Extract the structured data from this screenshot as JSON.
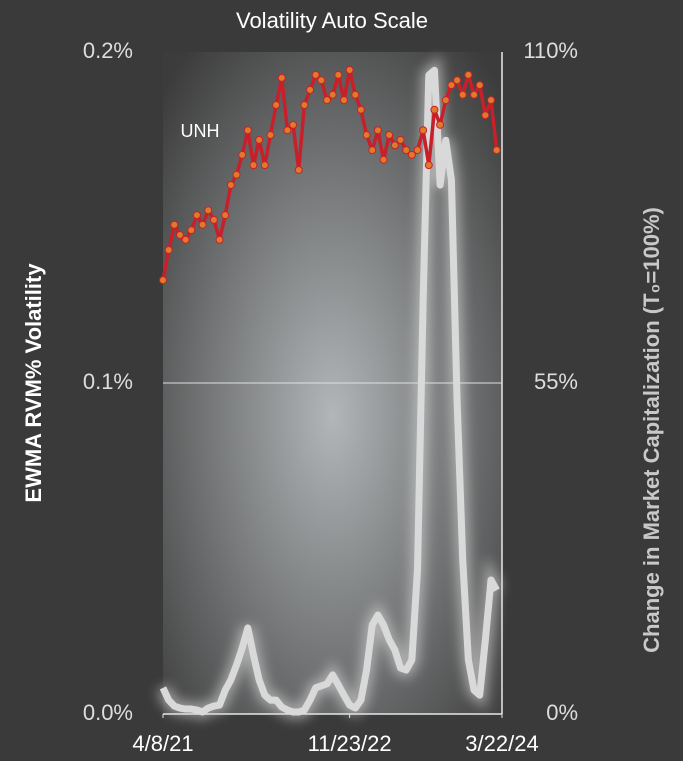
{
  "chart_data": {
    "type": "line",
    "title": "Volatility Auto Scale",
    "y_label": "EWMA RVM% Volatility",
    "y2_label": "Change in Market Capitalization (T₀=100%)",
    "annotation": "UNH",
    "xlim": [
      0,
      1079
    ],
    "xticks": [
      {
        "value": 0,
        "label": "4/8/21"
      },
      {
        "value": 594,
        "label": "11/23/22"
      },
      {
        "value": 1079,
        "label": "3/22/24"
      }
    ],
    "ylim": [
      0,
      0.2
    ],
    "yticks": [
      {
        "value": 0,
        "label": "0.0%"
      },
      {
        "value": 0.1,
        "label": "0.1%"
      },
      {
        "value": 0.2,
        "label": "0.2%"
      }
    ],
    "y2lim": [
      0,
      110
    ],
    "y2ticks": [
      {
        "value": 0,
        "label": "0%"
      },
      {
        "value": 55,
        "label": "55%"
      },
      {
        "value": 110,
        "label": "110%"
      }
    ],
    "grid": true,
    "x": [
      0,
      18,
      36,
      54,
      72,
      90,
      108,
      126,
      144,
      162,
      180,
      198,
      216,
      234,
      252,
      270,
      288,
      306,
      324,
      342,
      360,
      378,
      396,
      414,
      432,
      450,
      468,
      486,
      504,
      522,
      540,
      558,
      576,
      594,
      612,
      630,
      648,
      666,
      684,
      702,
      720,
      738,
      756,
      774,
      792,
      810,
      828,
      846,
      864,
      882,
      900,
      918,
      936,
      954,
      972,
      990,
      1008,
      1026,
      1044,
      1062
    ],
    "series": [
      {
        "color": "#d9d9d9",
        "axis": "y",
        "values": [
          0.0079,
          0.0042,
          0.0024,
          0.0018,
          0.0015,
          0.0015,
          0.0012,
          0.0006,
          0.0018,
          0.0024,
          0.0027,
          0.0072,
          0.0103,
          0.0148,
          0.0199,
          0.026,
          0.0178,
          0.0103,
          0.0057,
          0.0042,
          0.0042,
          0.0021,
          0.0012,
          0.0006,
          0.0006,
          0.0012,
          0.0042,
          0.0079,
          0.0085,
          0.0091,
          0.0118,
          0.0088,
          0.0057,
          0.0027,
          0.0018,
          0.0042,
          0.0133,
          0.0269,
          0.0299,
          0.0269,
          0.0224,
          0.0193,
          0.0139,
          0.0133,
          0.0163,
          0.0435,
          0.125,
          0.193,
          0.1945,
          0.1598,
          0.1733,
          0.1613,
          0.0948,
          0.0465,
          0.0163,
          0.0072,
          0.0057,
          0.0224,
          0.0405,
          0.0374
        ]
      },
      {
        "color": "#c8202a",
        "marker_color": "#e07a2a",
        "axis": "y2",
        "values": [
          72.1,
          77.1,
          81.3,
          79.6,
          78.8,
          80.4,
          82.9,
          81.3,
          83.7,
          82.1,
          78.8,
          82.9,
          87.9,
          89.6,
          92.9,
          97.0,
          91.2,
          95.4,
          91.2,
          96.2,
          101.2,
          105.7,
          97.0,
          97.9,
          90.4,
          101.2,
          103.7,
          106.2,
          105.3,
          102.0,
          102.9,
          106.2,
          102.0,
          107.0,
          102.9,
          100.4,
          96.2,
          93.7,
          97.0,
          92.1,
          96.2,
          94.5,
          95.4,
          93.7,
          92.9,
          93.7,
          97.0,
          91.2,
          100.4,
          97.9,
          102.0,
          104.5,
          105.3,
          102.9,
          106.2,
          102.9,
          104.5,
          99.5,
          102.0,
          93.7
        ]
      }
    ]
  }
}
